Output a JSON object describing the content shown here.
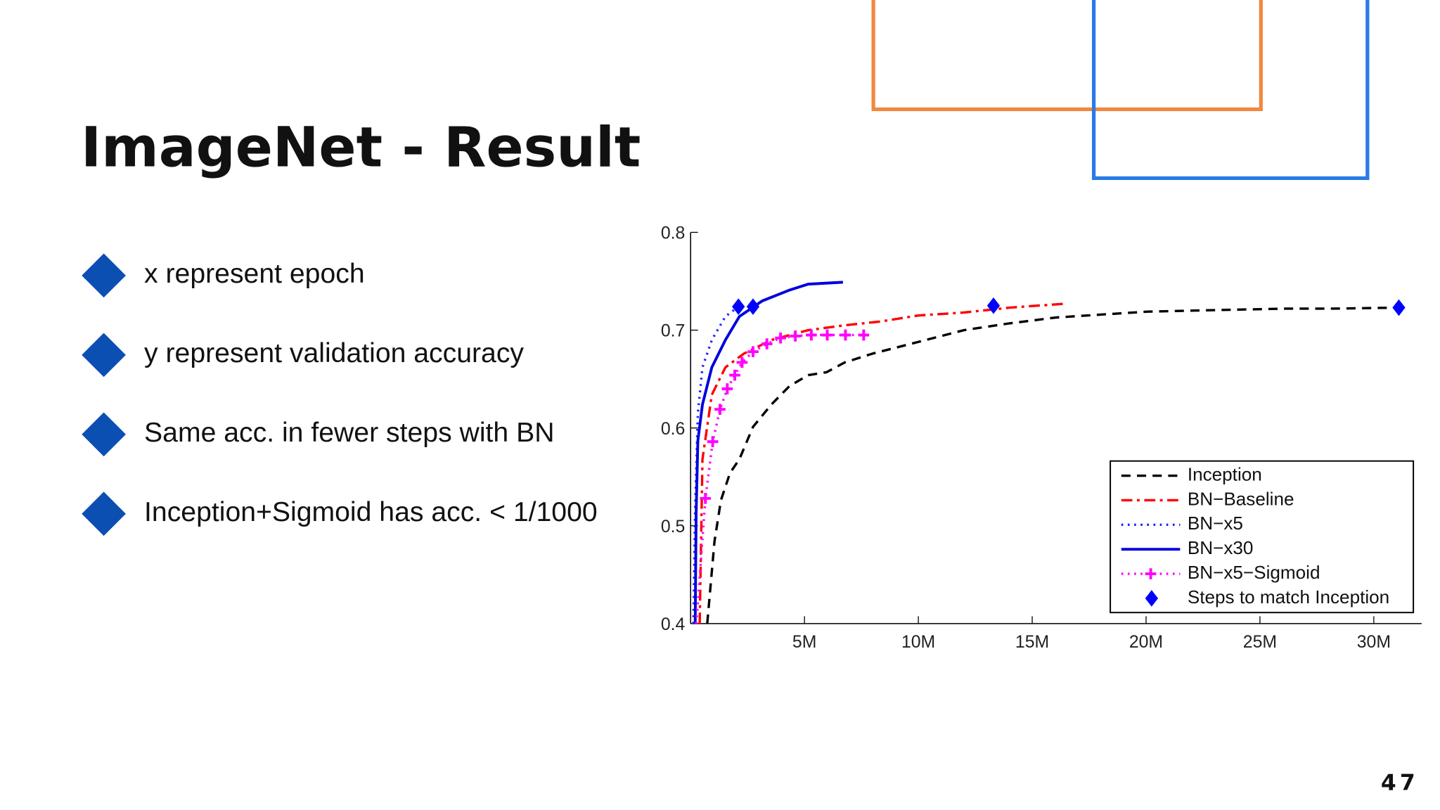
{
  "slide": {
    "title": "ImageNet - Result",
    "bullets": [
      "x represent epoch",
      "y represent validation accuracy",
      "Same acc. in fewer steps with BN",
      "Inception+Sigmoid has acc. <  1/1000"
    ],
    "page_number": "47"
  },
  "chart_data": {
    "type": "line",
    "xlim": [
      0,
      32100000
    ],
    "ylim": [
      0.4,
      0.8
    ],
    "xticks": [
      {
        "value": 5000000,
        "label": "5M"
      },
      {
        "value": 10000000,
        "label": "10M"
      },
      {
        "value": 15000000,
        "label": "15M"
      },
      {
        "value": 20000000,
        "label": "20M"
      },
      {
        "value": 25000000,
        "label": "25M"
      },
      {
        "value": 30000000,
        "label": "30M"
      }
    ],
    "yticks": [
      0.4,
      0.5,
      0.6,
      0.7,
      0.8
    ],
    "legend": "lower right",
    "series": [
      {
        "name": "Inception",
        "color": "#000000",
        "style": "dashed",
        "x": [
          730000,
          1050000,
          1330000,
          1730000,
          2140000,
          2740000,
          3550000,
          4350000,
          5160000,
          5970000,
          6770000,
          7980000,
          10000000,
          12000000,
          14030000,
          16050000,
          18060000,
          20080000,
          22100000,
          24100000,
          26100000,
          28100000,
          31000000
        ],
        "values": [
          0.4,
          0.484,
          0.526,
          0.554,
          0.568,
          0.601,
          0.624,
          0.643,
          0.654,
          0.657,
          0.667,
          0.676,
          0.688,
          0.7,
          0.707,
          0.713,
          0.716,
          0.719,
          0.72,
          0.721,
          0.722,
          0.722,
          0.723
        ]
      },
      {
        "name": "BN−Baseline",
        "color": "#ff0000",
        "style": "dashdot",
        "x": [
          400000,
          520000,
          930000,
          1530000,
          2340000,
          3550000,
          5160000,
          6770000,
          8390000,
          10000000,
          12000000,
          14000000,
          16450000
        ],
        "values": [
          0.4,
          0.568,
          0.634,
          0.662,
          0.676,
          0.69,
          0.7,
          0.705,
          0.709,
          0.715,
          0.718,
          0.723,
          0.727
        ]
      },
      {
        "name": "BN−x5",
        "color": "#2020ff",
        "style": "dotted",
        "x": [
          120000,
          200000,
          320000,
          520000,
          930000,
          1530000,
          2100000
        ],
        "values": [
          0.4,
          0.521,
          0.615,
          0.662,
          0.69,
          0.714,
          0.724
        ]
      },
      {
        "name": "BN−x30",
        "color": "#0000dd",
        "style": "solid",
        "x": [
          200000,
          240000,
          320000,
          520000,
          930000,
          1530000,
          2140000,
          3150000,
          4350000,
          5160000,
          6690000
        ],
        "values": [
          0.4,
          0.512,
          0.587,
          0.624,
          0.662,
          0.69,
          0.714,
          0.73,
          0.741,
          0.747,
          0.749
        ]
      },
      {
        "name": "BN−x5−Sigmoid",
        "color": "#ff00ff",
        "style": "dotted-plus",
        "x": [
          250000,
          650000,
          970000,
          1290000,
          1610000,
          1940000,
          2260000,
          2740000,
          3350000,
          3950000,
          4600000,
          5300000,
          6000000,
          6800000,
          7600000
        ],
        "values": [
          0.4,
          0.528,
          0.586,
          0.619,
          0.64,
          0.654,
          0.667,
          0.678,
          0.686,
          0.692,
          0.694,
          0.695,
          0.695,
          0.695,
          0.695
        ]
      },
      {
        "name": "Steps to match Inception",
        "color": "#0000ff",
        "style": "diamond",
        "x": [
          2100000,
          2740000,
          13300000,
          31100000
        ],
        "values": [
          0.724,
          0.724,
          0.725,
          0.723
        ]
      }
    ]
  }
}
